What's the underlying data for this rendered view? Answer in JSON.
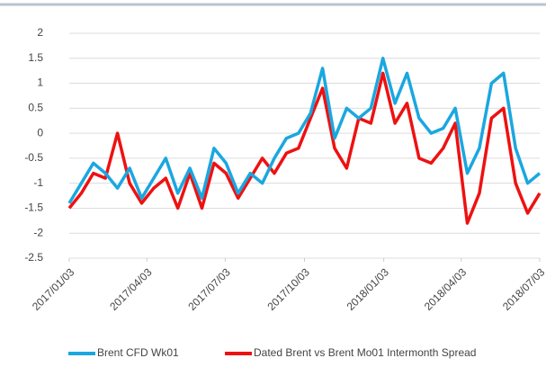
{
  "chart_data": {
    "type": "line",
    "x": [
      "2017/01/03",
      "2017/01/17",
      "2017/01/31",
      "2017/02/14",
      "2017/02/28",
      "2017/03/14",
      "2017/03/28",
      "2017/04/11",
      "2017/04/25",
      "2017/05/09",
      "2017/05/23",
      "2017/06/06",
      "2017/06/20",
      "2017/07/04",
      "2017/07/18",
      "2017/08/01",
      "2017/08/15",
      "2017/08/29",
      "2017/09/12",
      "2017/09/26",
      "2017/10/10",
      "2017/10/24",
      "2017/11/07",
      "2017/11/21",
      "2017/12/05",
      "2017/12/19",
      "2018/01/02",
      "2018/01/16",
      "2018/01/30",
      "2018/02/13",
      "2018/02/27",
      "2018/03/13",
      "2018/03/27",
      "2018/04/10",
      "2018/04/24",
      "2018/05/08",
      "2018/05/22",
      "2018/06/05",
      "2018/06/19",
      "2018/07/03"
    ],
    "series": [
      {
        "name": "Brent CFD Wk01",
        "color": "#1aa7e0",
        "values": [
          -1.4,
          -1.0,
          -0.6,
          -0.8,
          -1.1,
          -0.7,
          -1.3,
          -0.9,
          -0.5,
          -1.2,
          -0.7,
          -1.3,
          -0.3,
          -0.6,
          -1.2,
          -0.8,
          -1.0,
          -0.5,
          -0.1,
          0.0,
          0.4,
          1.3,
          -0.1,
          0.5,
          0.3,
          0.5,
          1.5,
          0.6,
          1.2,
          0.3,
          0.0,
          0.1,
          0.5,
          -0.8,
          -0.3,
          1.0,
          1.2,
          -0.3,
          -1.0,
          -0.8
        ]
      },
      {
        "name": "Dated Brent vs Brent Mo01 Intermonth Spread",
        "color": "#ee1111",
        "values": [
          -1.5,
          -1.2,
          -0.8,
          -0.9,
          0.0,
          -1.0,
          -1.4,
          -1.1,
          -0.9,
          -1.5,
          -0.8,
          -1.5,
          -0.6,
          -0.8,
          -1.3,
          -0.9,
          -0.5,
          -0.8,
          -0.4,
          -0.3,
          0.3,
          0.9,
          -0.3,
          -0.7,
          0.3,
          0.2,
          1.2,
          0.2,
          0.6,
          -0.5,
          -0.6,
          -0.3,
          0.2,
          -1.8,
          -1.2,
          0.3,
          0.5,
          -1.0,
          -1.6,
          -1.2
        ]
      }
    ],
    "xlim": [
      "2017/01/03",
      "2018/07/03"
    ],
    "xticks": [
      "2017/01/03",
      "2017/04/03",
      "2017/07/03",
      "2017/10/03",
      "2018/01/03",
      "2018/04/03",
      "2018/07/03"
    ],
    "ylim": [
      -2.5,
      2
    ],
    "yticks": [
      2,
      1.5,
      1,
      0.5,
      0,
      -0.5,
      -1,
      -1.5,
      -2,
      -2.5
    ],
    "grid": true,
    "legend": "bottom"
  }
}
